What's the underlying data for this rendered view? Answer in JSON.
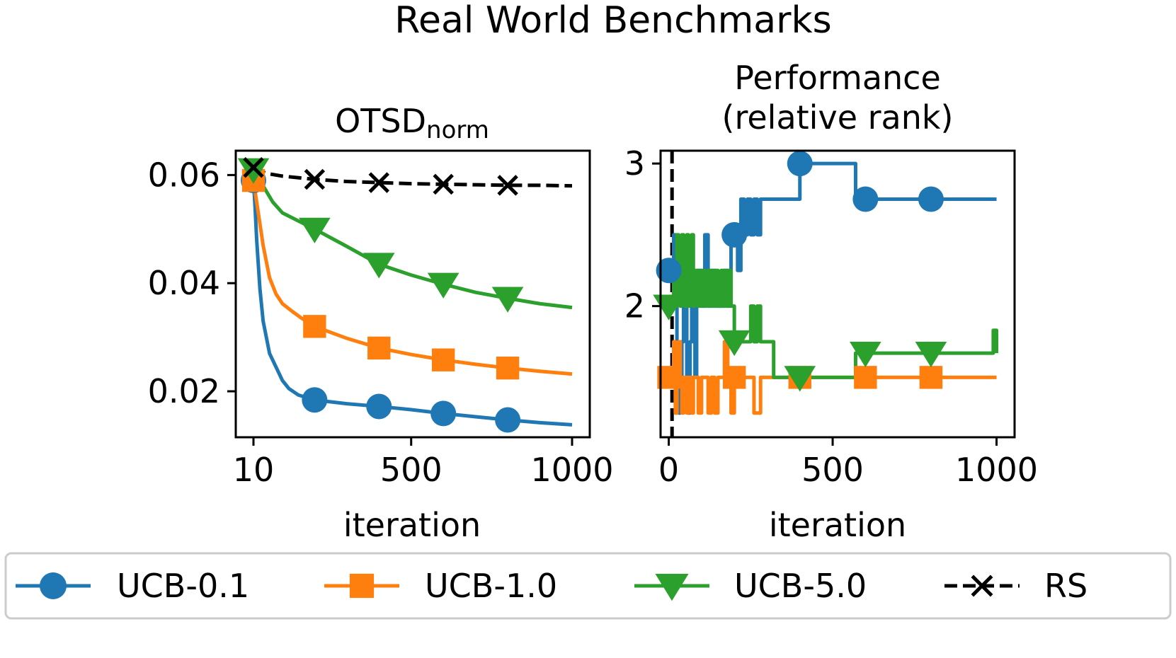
{
  "suptitle": "Real World Benchmarks",
  "colors": {
    "UCB-0.1": "#1f77b4",
    "UCB-1.0": "#ff7f0e",
    "UCB-5.0": "#2ca02c",
    "RS": "#000000"
  },
  "legend": {
    "placement": "bottom",
    "entries": [
      {
        "label": "UCB-0.1",
        "marker": "circle",
        "line": "solid"
      },
      {
        "label": "UCB-1.0",
        "marker": "square",
        "line": "solid"
      },
      {
        "label": "UCB-5.0",
        "marker": "triangle-down",
        "line": "solid"
      },
      {
        "label": "RS",
        "marker": "x",
        "line": "dashed"
      }
    ]
  },
  "chart_data": [
    {
      "type": "line",
      "title": "OTSD",
      "title_subscript": "norm",
      "xlabel": "iteration",
      "ylabel": "",
      "xlim": [
        -45,
        1055
      ],
      "ylim": [
        0.0115,
        0.0645
      ],
      "xticks": [
        10,
        500,
        1000
      ],
      "xtick_labels": [
        "10",
        "500",
        "1000"
      ],
      "yticks": [
        0.02,
        0.04,
        0.06
      ],
      "ytick_labels": [
        "0.02",
        "0.04",
        "0.06"
      ],
      "grid": false,
      "series": [
        {
          "name": "UCB-0.1",
          "marker": "circle",
          "line": "solid",
          "x": [
            10,
            15,
            20,
            30,
            40,
            60,
            80,
            100,
            120,
            150,
            200,
            300,
            400,
            500,
            600,
            700,
            800,
            900,
            1000
          ],
          "y": [
            0.059,
            0.054,
            0.048,
            0.039,
            0.033,
            0.027,
            0.0245,
            0.022,
            0.0205,
            0.0193,
            0.0184,
            0.0177,
            0.0172,
            0.0166,
            0.0159,
            0.0153,
            0.0147,
            0.0142,
            0.0138
          ],
          "marker_x": [
            10,
            200,
            400,
            600,
            800
          ]
        },
        {
          "name": "UCB-1.0",
          "marker": "square",
          "line": "solid",
          "x": [
            10,
            20,
            30,
            40,
            60,
            80,
            100,
            130,
            160,
            200,
            300,
            400,
            500,
            600,
            700,
            800,
            900,
            1000
          ],
          "y": [
            0.059,
            0.055,
            0.051,
            0.047,
            0.041,
            0.038,
            0.0362,
            0.0348,
            0.0335,
            0.032,
            0.0298,
            0.028,
            0.0268,
            0.0258,
            0.025,
            0.0243,
            0.0237,
            0.0232
          ],
          "marker_x": [
            10,
            200,
            400,
            600,
            800
          ]
        },
        {
          "name": "UCB-5.0",
          "marker": "triangle-down",
          "line": "solid",
          "x": [
            10,
            40,
            70,
            100,
            150,
            200,
            300,
            400,
            500,
            600,
            700,
            800,
            900,
            1000
          ],
          "y": [
            0.061,
            0.058,
            0.055,
            0.053,
            0.0515,
            0.05,
            0.0468,
            0.0435,
            0.0415,
            0.0398,
            0.0383,
            0.0372,
            0.0362,
            0.0355
          ],
          "marker_x": [
            10,
            200,
            400,
            600,
            800
          ]
        },
        {
          "name": "RS",
          "marker": "x",
          "line": "dashed",
          "x": [
            10,
            50,
            100,
            200,
            300,
            400,
            500,
            600,
            700,
            800,
            900,
            1000
          ],
          "y": [
            0.0614,
            0.0603,
            0.0598,
            0.0592,
            0.0588,
            0.0586,
            0.0584,
            0.0583,
            0.0582,
            0.0581,
            0.0581,
            0.058
          ],
          "marker_x": [
            10,
            200,
            400,
            600,
            800
          ]
        }
      ]
    },
    {
      "type": "line",
      "title": "Performance\n(relative rank)",
      "xlabel": "iteration",
      "ylabel": "",
      "xlim": [
        -25,
        1055
      ],
      "ylim": [
        1.08,
        3.09
      ],
      "xticks": [
        0,
        500,
        1000
      ],
      "xtick_labels": [
        "0",
        "500",
        "1000"
      ],
      "yticks": [
        2,
        3
      ],
      "ytick_labels": [
        "2",
        "3"
      ],
      "grid": false,
      "vline": {
        "x": 10,
        "style": "dashed",
        "color": "#000000"
      },
      "series": [
        {
          "name": "UCB-0.1",
          "marker": "circle",
          "line": "solid",
          "step": true,
          "x": [
            0,
            10,
            15,
            20,
            25,
            30,
            35,
            40,
            45,
            50,
            55,
            60,
            65,
            70,
            75,
            80,
            85,
            90,
            100,
            110,
            120,
            130,
            140,
            150,
            160,
            170,
            180,
            190,
            200,
            210,
            220,
            230,
            240,
            250,
            260,
            270,
            280,
            290,
            300,
            320,
            350,
            380,
            400,
            450,
            500,
            560,
            570,
            600,
            700,
            800,
            900,
            1000
          ],
          "y": [
            2.25,
            2.25,
            2.5,
            2.25,
            1.75,
            1.25,
            1.5,
            1.75,
            2.0,
            2.0,
            1.5,
            1.25,
            1.75,
            2.0,
            1.75,
            1.5,
            2.0,
            2.25,
            2.0,
            2.5,
            2.0,
            2.25,
            2.0,
            2.0,
            2.0,
            2.25,
            2.0,
            2.5,
            2.5,
            2.25,
            2.75,
            2.5,
            2.75,
            2.5,
            2.75,
            2.5,
            2.75,
            2.75,
            2.75,
            2.75,
            2.75,
            2.75,
            3.0,
            3.0,
            3.0,
            3.0,
            2.75,
            2.75,
            2.75,
            2.75,
            2.75,
            2.75
          ],
          "marker_x": [
            0,
            200,
            400,
            600,
            800
          ]
        },
        {
          "name": "UCB-1.0",
          "marker": "square",
          "line": "solid",
          "step": true,
          "x": [
            0,
            10,
            15,
            20,
            25,
            30,
            35,
            40,
            45,
            50,
            55,
            60,
            65,
            70,
            75,
            80,
            90,
            100,
            110,
            120,
            130,
            140,
            150,
            160,
            170,
            180,
            190,
            200,
            220,
            240,
            260,
            270,
            280,
            290,
            300,
            350,
            400,
            500,
            600,
            700,
            800,
            900,
            1000
          ],
          "y": [
            1.5,
            1.5,
            1.75,
            1.25,
            1.5,
            1.75,
            1.5,
            1.25,
            1.5,
            1.5,
            1.25,
            1.5,
            1.5,
            1.25,
            1.5,
            1.5,
            1.25,
            1.5,
            1.5,
            1.25,
            1.5,
            1.25,
            1.5,
            1.5,
            1.75,
            1.5,
            1.25,
            1.5,
            1.5,
            1.5,
            1.25,
            1.25,
            1.5,
            1.5,
            1.5,
            1.5,
            1.5,
            1.5,
            1.5,
            1.5,
            1.5,
            1.5,
            1.5
          ],
          "marker_x": [
            0,
            200,
            400,
            600,
            800
          ]
        },
        {
          "name": "UCB-5.0",
          "marker": "triangle-down",
          "line": "solid",
          "step": true,
          "x": [
            0,
            10,
            15,
            20,
            25,
            30,
            35,
            40,
            45,
            50,
            55,
            60,
            65,
            70,
            75,
            80,
            90,
            100,
            110,
            120,
            130,
            140,
            150,
            160,
            170,
            180,
            190,
            200,
            230,
            250,
            260,
            270,
            280,
            300,
            320,
            350,
            400,
            500,
            560,
            570,
            600,
            700,
            800,
            900,
            990,
            1000
          ],
          "y": [
            2.0,
            2.0,
            2.25,
            2.0,
            2.5,
            2.25,
            2.0,
            2.5,
            2.25,
            2.0,
            2.5,
            2.0,
            2.25,
            2.5,
            2.0,
            2.25,
            2.0,
            2.25,
            2.0,
            2.25,
            2.0,
            2.25,
            2.0,
            2.25,
            2.0,
            2.25,
            2.0,
            1.75,
            1.75,
            2.0,
            1.75,
            2.0,
            1.75,
            1.75,
            1.5,
            1.5,
            1.5,
            1.5,
            1.5,
            1.67,
            1.67,
            1.67,
            1.67,
            1.67,
            1.83,
            1.67
          ],
          "marker_x": [
            0,
            200,
            400,
            600,
            800
          ]
        }
      ]
    }
  ]
}
